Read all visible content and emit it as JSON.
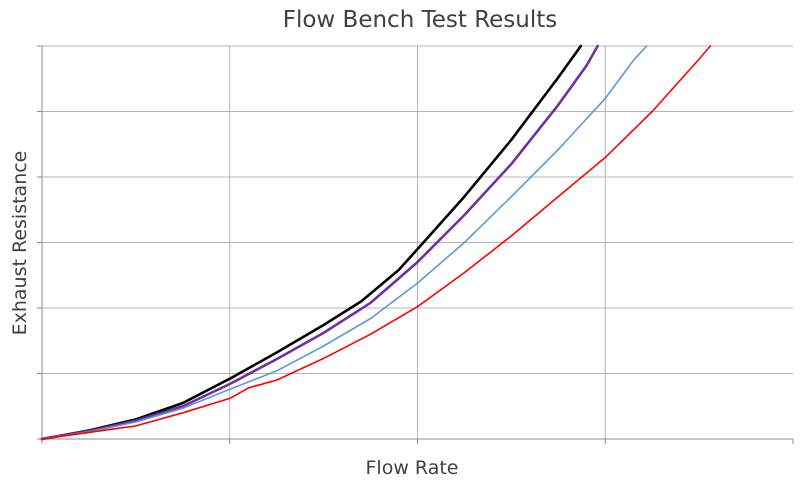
{
  "chart_data": {
    "type": "line",
    "title": "Flow Bench Test Results",
    "xlabel": "Flow Rate",
    "ylabel": "Exhaust Resistance",
    "xlim": [
      0,
      4
    ],
    "ylim": [
      0,
      6
    ],
    "x_gridlines": [
      1,
      2,
      3
    ],
    "y_gridlines": [
      1,
      2,
      3,
      4,
      5,
      6
    ],
    "tick_labels_shown": false,
    "legend": "none",
    "grid": true,
    "series": [
      {
        "color": "#000000",
        "width": 2.6,
        "points": [
          [
            0,
            0
          ],
          [
            0.25,
            0.13
          ],
          [
            0.5,
            0.3
          ],
          [
            0.75,
            0.55
          ],
          [
            1.0,
            0.92
          ],
          [
            1.25,
            1.32
          ],
          [
            1.5,
            1.74
          ],
          [
            1.7,
            2.1
          ],
          [
            1.9,
            2.58
          ],
          [
            2.0,
            2.9
          ],
          [
            2.25,
            3.7
          ],
          [
            2.5,
            4.57
          ],
          [
            2.75,
            5.52
          ],
          [
            2.8,
            5.72
          ],
          [
            2.85,
            5.92
          ],
          [
            2.87,
            6.0
          ]
        ]
      },
      {
        "color": "#7030a0",
        "width": 2.6,
        "points": [
          [
            0,
            0
          ],
          [
            0.25,
            0.12
          ],
          [
            0.5,
            0.28
          ],
          [
            0.75,
            0.5
          ],
          [
            1.0,
            0.84
          ],
          [
            1.25,
            1.22
          ],
          [
            1.5,
            1.62
          ],
          [
            1.75,
            2.08
          ],
          [
            2.0,
            2.7
          ],
          [
            2.25,
            3.42
          ],
          [
            2.5,
            4.2
          ],
          [
            2.75,
            5.1
          ],
          [
            2.9,
            5.7
          ],
          [
            2.96,
            6.0
          ]
        ]
      },
      {
        "color": "#5b9bd5",
        "width": 1.6,
        "points": [
          [
            0,
            0
          ],
          [
            0.25,
            0.11
          ],
          [
            0.5,
            0.26
          ],
          [
            0.75,
            0.47
          ],
          [
            1.0,
            0.76
          ],
          [
            1.25,
            1.04
          ],
          [
            1.5,
            1.42
          ],
          [
            1.75,
            1.84
          ],
          [
            2.0,
            2.38
          ],
          [
            2.25,
            3.0
          ],
          [
            2.5,
            3.7
          ],
          [
            2.75,
            4.42
          ],
          [
            3.0,
            5.2
          ],
          [
            3.15,
            5.78
          ],
          [
            3.22,
            6.0
          ]
        ]
      },
      {
        "color": "#ff0000",
        "width": 1.6,
        "points": [
          [
            0,
            0
          ],
          [
            0.25,
            0.1
          ],
          [
            0.5,
            0.2
          ],
          [
            0.75,
            0.4
          ],
          [
            1.0,
            0.62
          ],
          [
            1.1,
            0.78
          ],
          [
            1.25,
            0.9
          ],
          [
            1.5,
            1.23
          ],
          [
            1.75,
            1.6
          ],
          [
            2.0,
            2.02
          ],
          [
            2.25,
            2.54
          ],
          [
            2.5,
            3.1
          ],
          [
            2.75,
            3.7
          ],
          [
            3.0,
            4.3
          ],
          [
            3.25,
            5.0
          ],
          [
            3.5,
            5.8
          ],
          [
            3.56,
            6.0
          ]
        ]
      }
    ]
  }
}
